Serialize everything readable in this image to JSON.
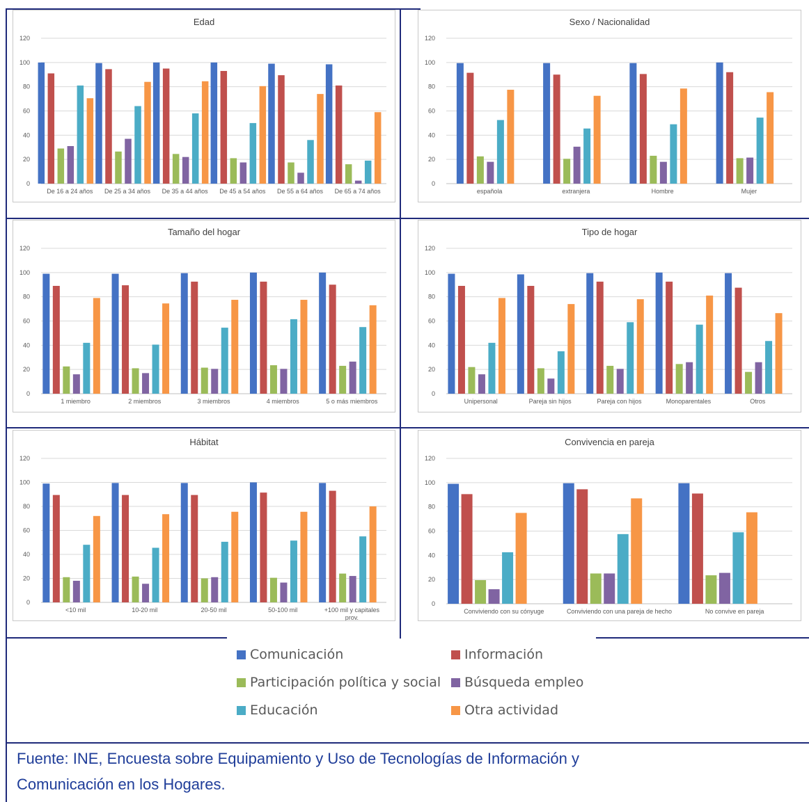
{
  "colors": {
    "series": [
      "#4472c4",
      "#c0504d",
      "#9bbb59",
      "#8064a2",
      "#4bacc6",
      "#f79646"
    ],
    "frame": "#1f2a7a",
    "grid": "#d9d9d9",
    "axis_text": "#595959",
    "source_text": "#1f3d99"
  },
  "legend": {
    "items": [
      {
        "label": "Comunicación",
        "color": "#4472c4"
      },
      {
        "label": "Información",
        "color": "#c0504d"
      },
      {
        "label": "Participación política y social",
        "color": "#9bbb59"
      },
      {
        "label": "Búsqueda empleo",
        "color": "#8064a2"
      },
      {
        "label": "Educación",
        "color": "#4bacc6"
      },
      {
        "label": "Otra actividad",
        "color": "#f79646"
      }
    ]
  },
  "source": {
    "line1": "Fuente: INE, Encuesta sobre Equipamiento y Uso de Tecnologías de Información y",
    "line2": "Comunicación en los Hogares."
  },
  "chart_data": [
    {
      "type": "bar",
      "title": "Edad",
      "ylim": [
        0,
        120
      ],
      "yticks": [
        0,
        20,
        40,
        60,
        80,
        100,
        120
      ],
      "categories": [
        "De 16 a 24 años",
        "De 25 a 34 años",
        "De 35 a 44 años",
        "De 45 a 54 años",
        "De 55 a 64 años",
        "De 65 a 74 años"
      ],
      "series": [
        {
          "name": "Comunicación",
          "values": [
            100,
            99.5,
            100,
            100,
            99,
            98.5
          ]
        },
        {
          "name": "Información",
          "values": [
            91,
            94.5,
            95,
            93,
            89.5,
            81
          ]
        },
        {
          "name": "Participación política y social",
          "values": [
            29,
            26.5,
            24.5,
            21,
            17.5,
            16
          ]
        },
        {
          "name": "Búsqueda empleo",
          "values": [
            31,
            37,
            22,
            17.5,
            9,
            2.5
          ]
        },
        {
          "name": "Educación",
          "values": [
            81,
            64,
            58,
            50,
            36,
            19
          ]
        },
        {
          "name": "Otra actividad",
          "values": [
            70.5,
            84,
            84.5,
            80.5,
            74,
            59
          ]
        }
      ]
    },
    {
      "type": "bar",
      "title": "Sexo / Nacionalidad",
      "ylim": [
        0,
        120
      ],
      "yticks": [
        0,
        20,
        40,
        60,
        80,
        100,
        120
      ],
      "categories": [
        "española",
        "extranjera",
        "Hombre",
        "Mujer"
      ],
      "series": [
        {
          "name": "Comunicación",
          "values": [
            99.5,
            99.5,
            99.5,
            100
          ]
        },
        {
          "name": "Información",
          "values": [
            91.5,
            90,
            90.5,
            92
          ]
        },
        {
          "name": "Participación política y social",
          "values": [
            22.5,
            20.5,
            23,
            21
          ]
        },
        {
          "name": "Búsqueda empleo",
          "values": [
            18,
            30.5,
            18,
            21.5
          ]
        },
        {
          "name": "Educación",
          "values": [
            52.5,
            45.5,
            49,
            54.5
          ]
        },
        {
          "name": "Otra actividad",
          "values": [
            77.5,
            72.5,
            78.5,
            75.5
          ]
        }
      ]
    },
    {
      "type": "bar",
      "title": "Tamaño del hogar",
      "ylim": [
        0,
        120
      ],
      "yticks": [
        0,
        20,
        40,
        60,
        80,
        100,
        120
      ],
      "categories": [
        "1 miembro",
        "2 miembros",
        "3 miembros",
        "4 miembros",
        "5 o más miembros"
      ],
      "series": [
        {
          "name": "Comunicación",
          "values": [
            99,
            99,
            99.5,
            100,
            100
          ]
        },
        {
          "name": "Información",
          "values": [
            89,
            89.5,
            92.5,
            92.5,
            90
          ]
        },
        {
          "name": "Participación política y social",
          "values": [
            22.5,
            21,
            21.5,
            23.5,
            23
          ]
        },
        {
          "name": "Búsqueda empleo",
          "values": [
            16,
            17,
            20.5,
            20.5,
            26.5
          ]
        },
        {
          "name": "Educación",
          "values": [
            42,
            40.5,
            54.5,
            61.5,
            55
          ]
        },
        {
          "name": "Otra actividad",
          "values": [
            79,
            74.5,
            77.5,
            77.5,
            73
          ]
        }
      ]
    },
    {
      "type": "bar",
      "title": "Tipo de hogar",
      "ylim": [
        0,
        120
      ],
      "yticks": [
        0,
        20,
        40,
        60,
        80,
        100,
        120
      ],
      "categories": [
        "Unipersonal",
        "Pareja sin hijos",
        "Pareja con hijos",
        "Monoparentales",
        "Otros"
      ],
      "series": [
        {
          "name": "Comunicación",
          "values": [
            99,
            98.5,
            99.5,
            100,
            99.5
          ]
        },
        {
          "name": "Información",
          "values": [
            89,
            89,
            92.5,
            92.5,
            87.5
          ]
        },
        {
          "name": "Participación política y social",
          "values": [
            22,
            21,
            23,
            24.5,
            18
          ]
        },
        {
          "name": "Búsqueda empleo",
          "values": [
            16,
            12.5,
            20.5,
            26,
            26
          ]
        },
        {
          "name": "Educación",
          "values": [
            42,
            35,
            59,
            57,
            43.5
          ]
        },
        {
          "name": "Otra actividad",
          "values": [
            79,
            74,
            78,
            81,
            66.5
          ]
        }
      ]
    },
    {
      "type": "bar",
      "title": "Hábitat",
      "ylim": [
        0,
        120
      ],
      "yticks": [
        0,
        20,
        40,
        60,
        80,
        100,
        120
      ],
      "categories": [
        "<10 mil",
        "10-20 mil",
        "20-50 mil",
        "50-100 mil",
        "+100 mil y capitales prov."
      ],
      "series": [
        {
          "name": "Comunicación",
          "values": [
            99,
            99.5,
            99.5,
            100,
            99.5
          ]
        },
        {
          "name": "Información",
          "values": [
            89.5,
            89.5,
            89.5,
            91.5,
            93
          ]
        },
        {
          "name": "Participación política y social",
          "values": [
            21,
            21.5,
            20,
            20.5,
            24
          ]
        },
        {
          "name": "Búsqueda empleo",
          "values": [
            18,
            15.5,
            21,
            16.5,
            22
          ]
        },
        {
          "name": "Educación",
          "values": [
            48,
            45.5,
            50.5,
            51.5,
            55
          ]
        },
        {
          "name": "Otra actividad",
          "values": [
            72,
            73.5,
            75.5,
            75.5,
            80
          ]
        }
      ]
    },
    {
      "type": "bar",
      "title": "Convivencia en pareja",
      "ylim": [
        0,
        120
      ],
      "yticks": [
        0,
        20,
        40,
        60,
        80,
        100,
        120
      ],
      "categories": [
        "Conviviendo con su cónyuge",
        "Conviviendo con una pareja de hecho",
        "No convive en pareja"
      ],
      "series": [
        {
          "name": "Comunicación",
          "values": [
            99,
            99.5,
            99.5
          ]
        },
        {
          "name": "Información",
          "values": [
            90.5,
            94.5,
            91
          ]
        },
        {
          "name": "Participación política y social",
          "values": [
            19.5,
            25,
            23.5
          ]
        },
        {
          "name": "Búsqueda empleo",
          "values": [
            12,
            25,
            25.5
          ]
        },
        {
          "name": "Educación",
          "values": [
            42.5,
            57.5,
            59
          ]
        },
        {
          "name": "Otra actividad",
          "values": [
            75,
            87,
            75.5
          ]
        }
      ]
    }
  ]
}
